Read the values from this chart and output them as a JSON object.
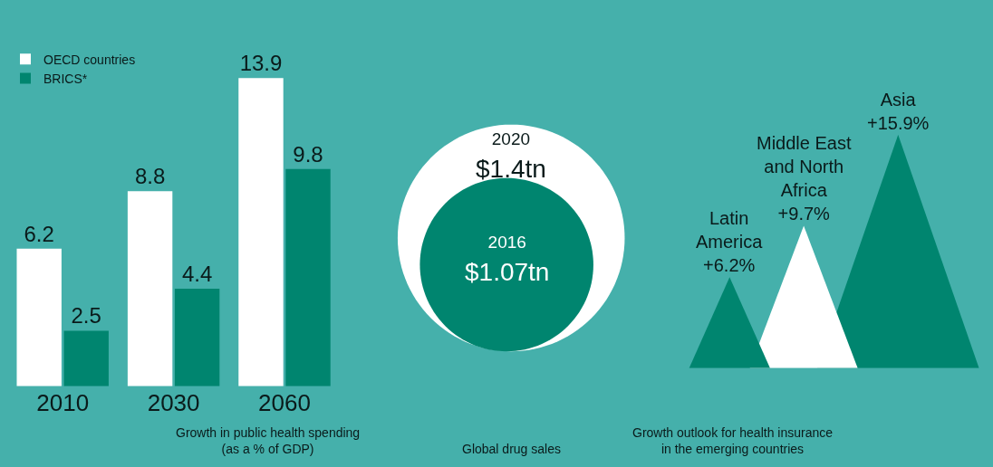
{
  "chart_data": [
    {
      "type": "bar",
      "title": "Growth in public health spending (as a % of GDP)",
      "categories": [
        "2010",
        "2030",
        "2060"
      ],
      "series": [
        {
          "name": "OECD countries",
          "color": "#ffffff",
          "values": [
            6.2,
            8.8,
            13.9
          ]
        },
        {
          "name": "BRICS*",
          "color": "#00856f",
          "values": [
            2.5,
            4.4,
            9.8
          ]
        }
      ],
      "data_labels": true,
      "legend": "top left",
      "grid": false
    },
    {
      "type": "other",
      "title": "Global drug sales",
      "categories": [
        "2020",
        "2016"
      ],
      "values": [
        1.4,
        1.07
      ],
      "value_labels": [
        "$1.4tn",
        "$1.07tn"
      ],
      "colors": [
        "#ffffff",
        "#00856f"
      ]
    },
    {
      "type": "other",
      "title": "Growth outlook for health insurance in the emerging countries",
      "categories": [
        "Latin America",
        "Middle East and North Africa",
        "Asia"
      ],
      "values": [
        6.2,
        9.7,
        15.9
      ],
      "value_labels": [
        "+6.2%",
        "+9.7%",
        "+15.9%"
      ],
      "colors": [
        "#00856f",
        "#ffffff",
        "#00856f"
      ]
    }
  ]
}
